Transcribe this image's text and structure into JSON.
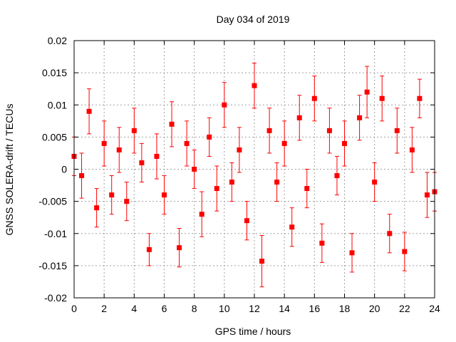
{
  "chart_data": {
    "type": "scatter",
    "title": "Day 034 of 2019",
    "xlabel": "GPS time / hours",
    "ylabel": "GNSS SOLERA-drift / TECUs",
    "xlim": [
      0,
      24
    ],
    "ylim": [
      -0.02,
      0.02
    ],
    "x_ticks": [
      0,
      2,
      4,
      6,
      8,
      10,
      12,
      14,
      16,
      18,
      20,
      22,
      24
    ],
    "x_tick_labels": [
      "0",
      "2",
      "4",
      "6",
      "8",
      "10",
      "12",
      "14",
      "16",
      "18",
      "20",
      "22",
      "24"
    ],
    "y_ticks": [
      -0.02,
      -0.015,
      -0.01,
      -0.005,
      0,
      0.005,
      0.01,
      0.015,
      0.02
    ],
    "y_tick_labels": [
      "-0.02",
      "-0.015",
      "-0.01",
      "-0.005",
      "0",
      "0.005",
      "0.01",
      "0.015",
      "0.02"
    ],
    "grid": true,
    "error_bars": true,
    "series_color": "#ff0000",
    "series": [
      {
        "x": [
          0.0,
          0.5,
          1.0,
          1.5,
          2.0,
          2.5,
          3.0,
          3.5,
          4.0,
          4.5,
          5.0,
          5.5,
          6.0,
          6.5,
          7.0,
          7.5,
          8.0,
          8.5,
          9.0,
          9.5,
          10.0,
          10.5,
          11.0,
          11.5,
          12.0,
          12.5,
          13.0,
          13.5,
          14.0,
          14.5,
          15.0,
          15.5,
          16.0,
          16.5,
          17.0,
          17.5,
          18.0,
          18.5,
          19.0,
          19.5,
          20.0,
          20.5,
          21.0,
          21.5,
          22.0,
          22.5,
          23.0,
          23.5,
          24.0
        ],
        "y": [
          0.002,
          -0.001,
          0.009,
          -0.006,
          0.004,
          -0.004,
          0.003,
          -0.005,
          0.006,
          0.001,
          -0.0125,
          0.002,
          -0.004,
          0.007,
          -0.0122,
          0.004,
          0.0,
          -0.007,
          0.005,
          -0.003,
          0.01,
          -0.002,
          0.003,
          -0.008,
          0.013,
          -0.0143,
          0.006,
          -0.002,
          0.004,
          -0.009,
          0.008,
          -0.003,
          0.011,
          -0.0115,
          0.006,
          -0.001,
          0.004,
          -0.013,
          0.008,
          0.012,
          -0.002,
          0.011,
          -0.01,
          0.006,
          -0.0128,
          0.003,
          0.011,
          -0.004,
          -0.0035
        ],
        "y_error": [
          0.003,
          0.0035,
          0.0035,
          0.003,
          0.0035,
          0.003,
          0.0035,
          0.003,
          0.0035,
          0.003,
          0.0025,
          0.0035,
          0.003,
          0.0035,
          0.003,
          0.0035,
          0.003,
          0.0035,
          0.003,
          0.0035,
          0.0035,
          0.003,
          0.0035,
          0.003,
          0.0035,
          0.004,
          0.0035,
          0.003,
          0.0035,
          0.003,
          0.0035,
          0.003,
          0.0035,
          0.003,
          0.0035,
          0.003,
          0.0035,
          0.003,
          0.0035,
          0.004,
          0.003,
          0.0035,
          0.003,
          0.0035,
          0.003,
          0.0035,
          0.003,
          0.0035,
          0.003
        ]
      }
    ]
  }
}
